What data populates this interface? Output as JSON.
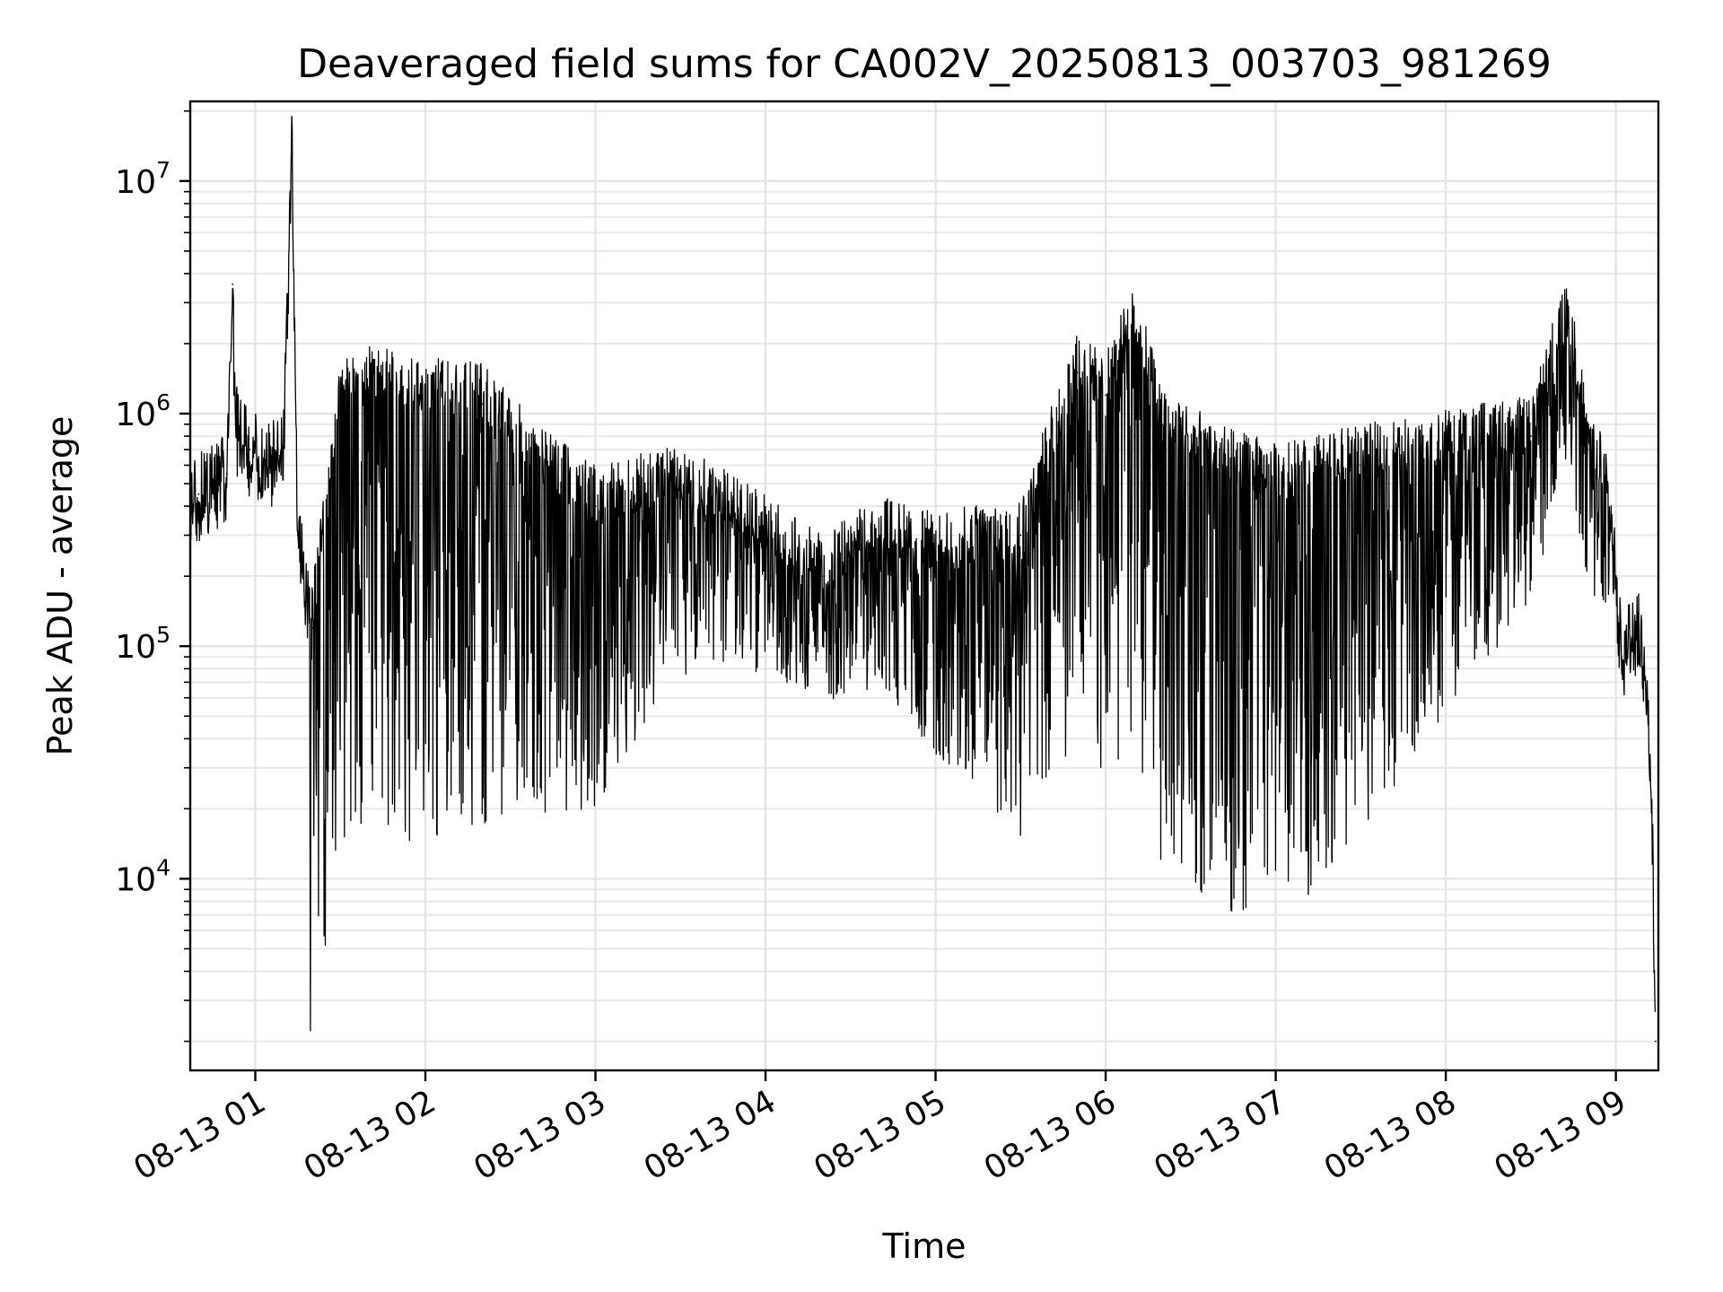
{
  "chart_data": {
    "type": "line",
    "title": "Deaveraged field sums for CA002V_20250813_003703_981269",
    "xlabel": "Time",
    "ylabel": "Peak ADU - average",
    "x_scale": "time",
    "y_scale": "log",
    "xlim": [
      "2025-08-13 00:37:03",
      "2025-08-13 09:15:00"
    ],
    "ylim": [
      1500,
      22000000
    ],
    "grid": true,
    "series_color": "#000000",
    "x_ticks": [
      {
        "t": "2025-08-13 01:00",
        "label": "08-13 01"
      },
      {
        "t": "2025-08-13 02:00",
        "label": "08-13 02"
      },
      {
        "t": "2025-08-13 03:00",
        "label": "08-13 03"
      },
      {
        "t": "2025-08-13 04:00",
        "label": "08-13 04"
      },
      {
        "t": "2025-08-13 05:00",
        "label": "08-13 05"
      },
      {
        "t": "2025-08-13 06:00",
        "label": "08-13 06"
      },
      {
        "t": "2025-08-13 07:00",
        "label": "08-13 07"
      },
      {
        "t": "2025-08-13 08:00",
        "label": "08-13 08"
      },
      {
        "t": "2025-08-13 09:00",
        "label": "08-13 09"
      }
    ],
    "y_ticks": [
      {
        "value": 10000,
        "base": "10",
        "exp": "4"
      },
      {
        "value": 100000,
        "base": "10",
        "exp": "5"
      },
      {
        "value": 1000000,
        "base": "10",
        "exp": "6"
      },
      {
        "value": 10000000,
        "base": "10",
        "exp": "7"
      }
    ],
    "series": [
      {
        "points": [
          [
            "2025-08-13 00:37",
            400000
          ],
          [
            "2025-08-13 00:40",
            450000
          ],
          [
            "2025-08-13 00:45",
            500000
          ],
          [
            "2025-08-13 00:50",
            550000
          ],
          [
            "2025-08-13 00:52",
            3600000
          ],
          [
            "2025-08-13 00:53",
            900000
          ],
          [
            "2025-08-13 00:58",
            700000
          ],
          [
            "2025-08-13 01:05",
            600000
          ],
          [
            "2025-08-13 01:10",
            800000
          ],
          [
            "2025-08-13 01:13",
            15000000
          ],
          [
            "2025-08-13 01:15",
            300000
          ],
          [
            "2025-08-13 01:20",
            120000
          ],
          [
            "2025-08-13 01:30",
            1200000
          ],
          [
            "2025-08-13 01:40",
            1300000
          ],
          [
            "2025-08-13 02:00",
            1200000
          ],
          [
            "2025-08-13 02:20",
            1100000
          ],
          [
            "2025-08-13 02:40",
            600000
          ],
          [
            "2025-08-13 03:00",
            400000
          ],
          [
            "2025-08-13 03:30",
            500000
          ],
          [
            "2025-08-13 04:00",
            300000
          ],
          [
            "2025-08-13 04:20",
            200000
          ],
          [
            "2025-08-13 04:40",
            300000
          ],
          [
            "2025-08-13 05:00",
            250000
          ],
          [
            "2025-08-13 05:30",
            300000
          ],
          [
            "2025-08-13 05:50",
            1500000
          ],
          [
            "2025-08-13 06:00",
            1200000
          ],
          [
            "2025-08-13 06:10",
            2500000
          ],
          [
            "2025-08-13 06:20",
            900000
          ],
          [
            "2025-08-13 06:40",
            600000
          ],
          [
            "2025-08-13 07:00",
            500000
          ],
          [
            "2025-08-13 07:30",
            600000
          ],
          [
            "2025-08-13 08:00",
            700000
          ],
          [
            "2025-08-13 08:30",
            800000
          ],
          [
            "2025-08-13 08:43",
            2800000
          ],
          [
            "2025-08-13 08:50",
            700000
          ],
          [
            "2025-08-13 08:57",
            500000
          ],
          [
            "2025-08-13 09:00",
            200000
          ],
          [
            "2025-08-13 09:02",
            90000
          ],
          [
            "2025-08-13 09:05",
            110000
          ],
          [
            "2025-08-13 09:08",
            120000
          ],
          [
            "2025-08-13 09:11",
            60000
          ],
          [
            "2025-08-13 09:13",
            15000
          ],
          [
            "2025-08-13 09:14",
            2000
          ]
        ]
      }
    ]
  }
}
